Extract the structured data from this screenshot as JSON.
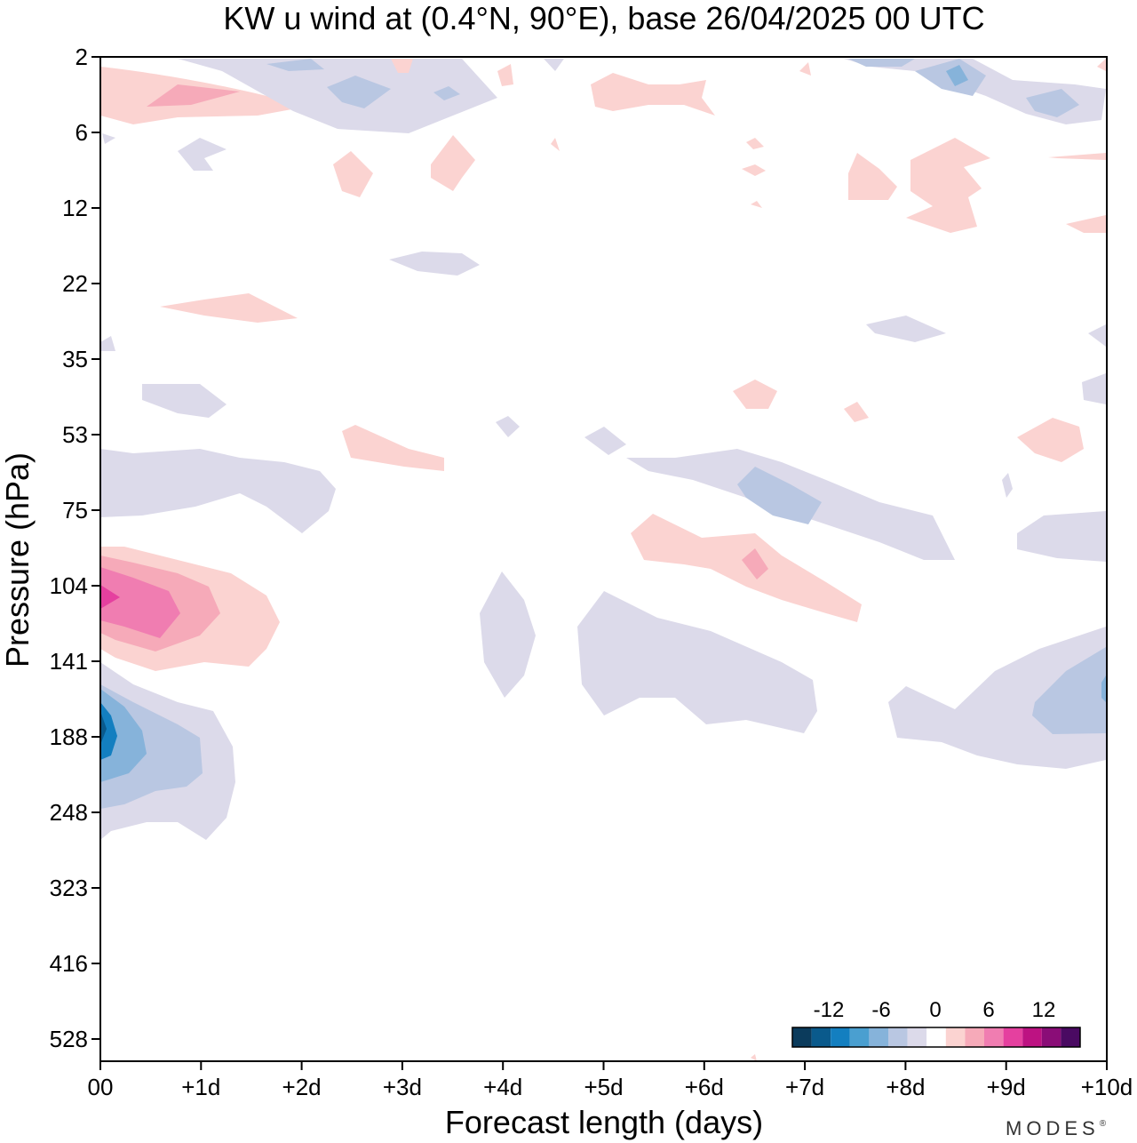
{
  "chart_data": {
    "type": "heatmap",
    "title": "KW u wind at (0.4°N, 90°E),  base 26/04/2025  00 UTC",
    "xlabel": "Forecast length (days)",
    "ylabel": "Pressure (hPa)",
    "x_ticks": [
      "00",
      "+1d",
      "+2d",
      "+3d",
      "+4d",
      "+5d",
      "+6d",
      "+7d",
      "+8d",
      "+9d",
      "+10d"
    ],
    "xlim_days": [
      0,
      10
    ],
    "y_ticks": [
      "2",
      "6",
      "12",
      "22",
      "35",
      "53",
      "75",
      "104",
      "141",
      "188",
      "248",
      "323",
      "416",
      "528"
    ],
    "ylim_hPa_top_to_bottom": [
      2,
      528
    ],
    "y_axis_inverted": true,
    "colorbar": {
      "tick_labels": [
        "-12",
        "-6",
        "0",
        "6",
        "12"
      ],
      "levels": [
        -21,
        -18,
        -15,
        -12,
        -9,
        -6,
        -3,
        3,
        6,
        9,
        12,
        15,
        18,
        21
      ],
      "colors": [
        "#0b3b5c",
        "#0a5a8c",
        "#137fc0",
        "#4a9fd0",
        "#86b3da",
        "#b9c7e2",
        "#dcdaea",
        "#ffffff",
        "#fbd3d1",
        "#f6aab9",
        "#f07db1",
        "#e5409f",
        "#bd1282",
        "#8a0d77",
        "#4a0a62"
      ]
    },
    "features": [
      {
        "name": "positive u wind core near 00 at 104-141 hPa",
        "value_max": 12,
        "day_range": [
          0,
          1.7
        ],
        "hPa_range": [
          85,
          140
        ]
      },
      {
        "name": "negative u wind core near 00 at 160-260 hPa",
        "value_min": -15,
        "day_range": [
          0,
          1.3
        ],
        "hPa_range": [
          141,
          300
        ]
      },
      {
        "name": "negative u wind region +8d to +10d near 150-220 hPa",
        "value_min": -6,
        "day_range": [
          7.8,
          10
        ],
        "hPa_range": [
          130,
          240
        ]
      },
      {
        "name": "positive u wind streak +5.3d to +7.5d near 80-120 hPa",
        "value_max": 6,
        "day_range": [
          5.3,
          7.5
        ],
        "hPa_range": [
          75,
          125
        ]
      }
    ]
  },
  "brand": "MODES",
  "brand_mark": "®"
}
